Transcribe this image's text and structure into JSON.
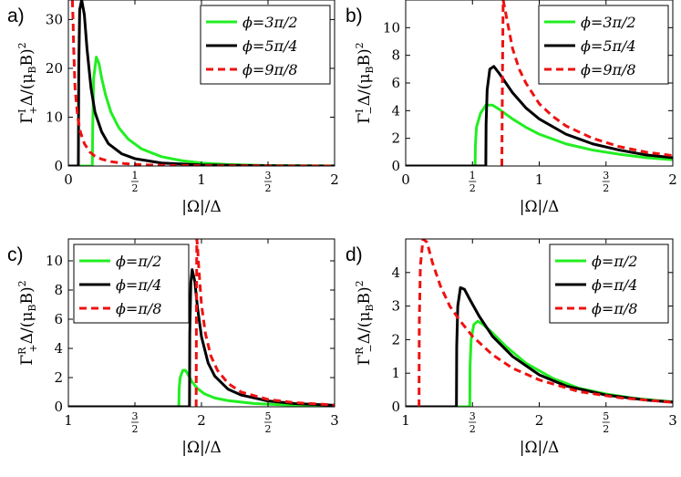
{
  "chart_data": [
    {
      "panel": "a)",
      "type": "line",
      "xlabel": "|Ω|/Δ",
      "ylabel": "Γ₊ᴵΔ/(μBB)²",
      "xlim": [
        0,
        2
      ],
      "ylim": [
        0,
        34
      ],
      "xticks": [
        {
          "v": 0,
          "label": "0"
        },
        {
          "v": 0.5,
          "num": "1",
          "den": "2"
        },
        {
          "v": 1,
          "label": "1"
        },
        {
          "v": 1.5,
          "num": "3",
          "den": "2"
        },
        {
          "v": 2,
          "label": "2"
        }
      ],
      "yticks": [
        {
          "v": 0,
          "label": "0"
        },
        {
          "v": 10,
          "label": "10"
        },
        {
          "v": 20,
          "label": "20"
        },
        {
          "v": 30,
          "label": "30"
        }
      ],
      "legend_position": "top-right",
      "series": [
        {
          "name": "ϕ=3π/2",
          "color": "#22ee22",
          "dash": "solid",
          "x": [
            0,
            0.18,
            0.183,
            0.19,
            0.21,
            0.23,
            0.25,
            0.28,
            0.32,
            0.38,
            0.45,
            0.55,
            0.7,
            0.85,
            1.0,
            1.2,
            1.5,
            2.0
          ],
          "y": [
            0,
            0,
            8,
            18,
            22.3,
            21,
            18,
            14.5,
            11,
            7.8,
            5.5,
            3.5,
            1.9,
            1.1,
            0.6,
            0.3,
            0.1,
            0.02
          ]
        },
        {
          "name": "ϕ=5π/4",
          "color": "#000000",
          "dash": "solid",
          "x": [
            0,
            0.075,
            0.078,
            0.085,
            0.1,
            0.12,
            0.14,
            0.17,
            0.2,
            0.25,
            0.3,
            0.4,
            0.5,
            0.7,
            1.0,
            1.5,
            2.0
          ],
          "y": [
            0,
            0,
            20,
            32,
            34,
            31,
            24,
            16,
            11,
            7,
            4.6,
            2.5,
            1.5,
            0.6,
            0.2,
            0.05,
            0.01
          ]
        },
        {
          "name": "ϕ=9π/8",
          "color": "#ee1111",
          "dash": "dashed",
          "x": [
            0.03,
            0.035,
            0.04,
            0.05,
            0.07,
            0.09,
            0.12,
            0.16,
            0.2,
            0.25,
            0.32,
            0.42,
            0.55,
            0.8,
            1.2,
            2.0
          ],
          "y": [
            34,
            30,
            24,
            16,
            10,
            7,
            4.6,
            2.9,
            2,
            1.4,
            0.9,
            0.5,
            0.25,
            0.08,
            0.02,
            0
          ]
        }
      ]
    },
    {
      "panel": "b)",
      "type": "line",
      "xlabel": "|Ω|/Δ",
      "ylabel": "Γ₋ᴵΔ/(μBB)²",
      "xlim": [
        0,
        2
      ],
      "ylim": [
        0,
        12
      ],
      "xticks": [
        {
          "v": 0,
          "label": "0"
        },
        {
          "v": 0.5,
          "num": "1",
          "den": "2"
        },
        {
          "v": 1,
          "label": "1"
        },
        {
          "v": 1.5,
          "num": "3",
          "den": "2"
        },
        {
          "v": 2,
          "label": "2"
        }
      ],
      "yticks": [
        {
          "v": 0,
          "label": "0"
        },
        {
          "v": 2,
          "label": "2"
        },
        {
          "v": 4,
          "label": "4"
        },
        {
          "v": 6,
          "label": "6"
        },
        {
          "v": 8,
          "label": "8"
        },
        {
          "v": 10,
          "label": "10"
        }
      ],
      "legend_position": "top-right",
      "series": [
        {
          "name": "ϕ=3π/2",
          "color": "#22ee22",
          "dash": "solid",
          "x": [
            0,
            0.52,
            0.522,
            0.53,
            0.56,
            0.6,
            0.65,
            0.7,
            0.8,
            0.9,
            1.0,
            1.2,
            1.4,
            1.6,
            1.8,
            2.0
          ],
          "y": [
            0,
            0,
            1.5,
            2.8,
            3.8,
            4.4,
            4.4,
            4.1,
            3.4,
            2.8,
            2.3,
            1.6,
            1.15,
            0.85,
            0.6,
            0.45
          ]
        },
        {
          "name": "ϕ=5π/4",
          "color": "#000000",
          "dash": "solid",
          "x": [
            0,
            0.6,
            0.602,
            0.61,
            0.63,
            0.66,
            0.7,
            0.75,
            0.8,
            0.9,
            1.0,
            1.2,
            1.4,
            1.6,
            1.8,
            2.0
          ],
          "y": [
            0,
            0,
            3,
            5.5,
            7.0,
            7.2,
            6.7,
            6.0,
            5.3,
            4.2,
            3.4,
            2.3,
            1.6,
            1.15,
            0.8,
            0.6
          ]
        },
        {
          "name": "ϕ=9π/8",
          "color": "#ee1111",
          "dash": "dashed",
          "x": [
            0.72,
            0.725,
            0.73,
            0.74,
            0.76,
            0.8,
            0.85,
            0.9,
            1.0,
            1.1,
            1.2,
            1.4,
            1.6,
            1.8,
            2.0
          ],
          "y": [
            0,
            7,
            12,
            11.5,
            10.5,
            8.5,
            7,
            6,
            4.5,
            3.6,
            2.9,
            2.0,
            1.4,
            1.0,
            0.75
          ]
        }
      ]
    },
    {
      "panel": "c)",
      "type": "line",
      "xlabel": "|Ω|/Δ",
      "ylabel": "Γ₊ᴿΔ/(μBB)²",
      "xlim": [
        1,
        3
      ],
      "ylim": [
        0,
        11.5
      ],
      "xticks": [
        {
          "v": 1,
          "label": "1"
        },
        {
          "v": 1.5,
          "num": "3",
          "den": "2"
        },
        {
          "v": 2,
          "label": "2"
        },
        {
          "v": 2.5,
          "num": "5",
          "den": "2"
        },
        {
          "v": 3,
          "label": "3"
        }
      ],
      "yticks": [
        {
          "v": 0,
          "label": "0"
        },
        {
          "v": 2,
          "label": "2"
        },
        {
          "v": 4,
          "label": "4"
        },
        {
          "v": 6,
          "label": "6"
        },
        {
          "v": 8,
          "label": "8"
        },
        {
          "v": 10,
          "label": "10"
        }
      ],
      "legend_position": "top-left",
      "series": [
        {
          "name": "ϕ=π/2",
          "color": "#22ee22",
          "dash": "solid",
          "x": [
            1,
            1.83,
            1.832,
            1.84,
            1.86,
            1.88,
            1.9,
            1.93,
            1.97,
            2.02,
            2.1,
            2.2,
            2.4,
            2.6,
            2.8,
            3.0
          ],
          "y": [
            0,
            0,
            1.2,
            2.0,
            2.5,
            2.5,
            2.2,
            1.7,
            1.25,
            0.9,
            0.6,
            0.42,
            0.22,
            0.14,
            0.09,
            0.06
          ]
        },
        {
          "name": "ϕ=π/4",
          "color": "#000000",
          "dash": "solid",
          "x": [
            1,
            1.91,
            1.912,
            1.92,
            1.93,
            1.95,
            1.97,
            2.0,
            2.05,
            2.1,
            2.2,
            2.3,
            2.5,
            2.7,
            3.0
          ],
          "y": [
            0,
            0,
            5,
            8.5,
            9.4,
            8.6,
            6.8,
            4.8,
            3.0,
            2.1,
            1.2,
            0.8,
            0.4,
            0.22,
            0.1
          ]
        },
        {
          "name": "ϕ=π/8",
          "color": "#ee1111",
          "dash": "dashed",
          "x": [
            1.96,
            1.962,
            1.965,
            1.97,
            1.98,
            2.0,
            2.03,
            2.07,
            2.12,
            2.2,
            2.3,
            2.5,
            2.7,
            3.0
          ],
          "y": [
            0,
            6,
            11.5,
            11,
            9.5,
            7,
            5,
            3.5,
            2.5,
            1.6,
            1.0,
            0.5,
            0.28,
            0.12
          ]
        }
      ]
    },
    {
      "panel": "d)",
      "type": "line",
      "xlabel": "|Ω|/Δ",
      "ylabel": "Γ₋ᴿΔ/(μBB)²",
      "xlim": [
        1,
        3
      ],
      "ylim": [
        0,
        5
      ],
      "xticks": [
        {
          "v": 1,
          "label": "1"
        },
        {
          "v": 1.5,
          "num": "3",
          "den": "2"
        },
        {
          "v": 2,
          "label": "2"
        },
        {
          "v": 2.5,
          "num": "5",
          "den": "2"
        },
        {
          "v": 3,
          "label": "3"
        }
      ],
      "yticks": [
        {
          "v": 0,
          "label": "0"
        },
        {
          "v": 1,
          "label": "1"
        },
        {
          "v": 2,
          "label": "2"
        },
        {
          "v": 3,
          "label": "3"
        },
        {
          "v": 4,
          "label": "4"
        }
      ],
      "legend_position": "top-right",
      "series": [
        {
          "name": "ϕ=π/2",
          "color": "#22ee22",
          "dash": "solid",
          "x": [
            1,
            1.48,
            1.482,
            1.49,
            1.51,
            1.54,
            1.58,
            1.65,
            1.75,
            1.9,
            2.1,
            2.3,
            2.5,
            2.7,
            2.9,
            3.0
          ],
          "y": [
            0,
            0,
            1.2,
            2.0,
            2.45,
            2.55,
            2.45,
            2.2,
            1.8,
            1.3,
            0.85,
            0.55,
            0.38,
            0.26,
            0.18,
            0.15
          ]
        },
        {
          "name": "ϕ=π/4",
          "color": "#000000",
          "dash": "solid",
          "x": [
            1,
            1.38,
            1.382,
            1.39,
            1.41,
            1.44,
            1.48,
            1.55,
            1.65,
            1.8,
            2.0,
            2.2,
            2.5,
            2.8,
            3.0
          ],
          "y": [
            0,
            0,
            1.8,
            3.0,
            3.55,
            3.5,
            3.2,
            2.7,
            2.1,
            1.5,
            0.95,
            0.62,
            0.35,
            0.2,
            0.14
          ]
        },
        {
          "name": "ϕ=π/8",
          "color": "#ee1111",
          "dash": "dashed",
          "x": [
            1.1,
            1.102,
            1.11,
            1.13,
            1.16,
            1.2,
            1.26,
            1.33,
            1.4,
            1.5,
            1.65,
            1.8,
            2.0,
            2.3,
            2.6,
            3.0
          ],
          "y": [
            0,
            2.5,
            4.2,
            5,
            4.9,
            4.3,
            3.6,
            3.0,
            2.6,
            2.1,
            1.55,
            1.15,
            0.8,
            0.45,
            0.27,
            0.13
          ]
        }
      ]
    }
  ]
}
